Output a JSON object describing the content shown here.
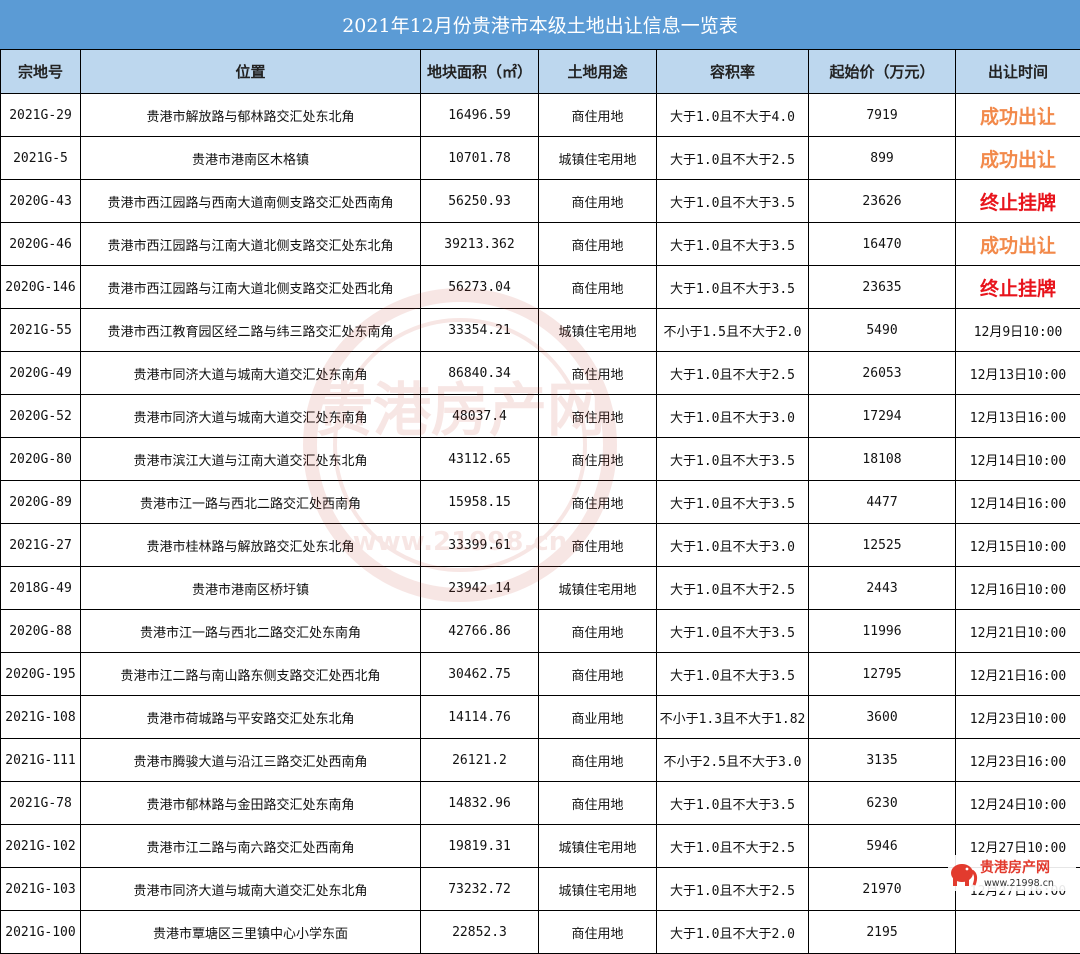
{
  "title": "2021年12月份贵港市本级土地出让信息一览表",
  "headers": [
    "宗地号",
    "位置",
    "地块面积（㎡）",
    "土地用途",
    "容积率",
    "起始价（万元）",
    "出让时间"
  ],
  "rows": [
    {
      "id": "2021G-29",
      "location": "贵港市解放路与郁林路交汇处东北角",
      "area": "16496.59",
      "use": "商住用地",
      "far": "大于1.0且不大于4.0",
      "price": "7919",
      "time": "",
      "status": "成功出让",
      "status_type": "success"
    },
    {
      "id": "2021G-5",
      "location": "贵港市港南区木格镇",
      "area": "10701.78",
      "use": "城镇住宅用地",
      "far": "大于1.0且不大于2.5",
      "price": "899",
      "time": "",
      "status": "成功出让",
      "status_type": "success"
    },
    {
      "id": "2020G-43",
      "location": "贵港市西江园路与西南大道南侧支路交汇处西南角",
      "area": "56250.93",
      "use": "商住用地",
      "far": "大于1.0且不大于3.5",
      "price": "23626",
      "time": "",
      "status": "终止挂牌",
      "status_type": "terminated"
    },
    {
      "id": "2020G-46",
      "location": "贵港市西江园路与江南大道北侧支路交汇处东北角",
      "area": "39213.362",
      "use": "商住用地",
      "far": "大于1.0且不大于3.5",
      "price": "16470",
      "time": "",
      "status": "成功出让",
      "status_type": "success"
    },
    {
      "id": "2020G-146",
      "location": "贵港市西江园路与江南大道北侧支路交汇处西北角",
      "area": "56273.04",
      "use": "商住用地",
      "far": "大于1.0且不大于3.5",
      "price": "23635",
      "time": "",
      "status": "终止挂牌",
      "status_type": "terminated"
    },
    {
      "id": "2021G-55",
      "location": "贵港市西江教育园区经二路与纬三路交汇处东南角",
      "area": "33354.21",
      "use": "城镇住宅用地",
      "far": "不小于1.5且不大于2.0",
      "price": "5490",
      "time": "12月9日10:00",
      "status": "",
      "status_type": ""
    },
    {
      "id": "2020G-49",
      "location": "贵港市同济大道与城南大道交汇处东南角",
      "area": "86840.34",
      "use": "商住用地",
      "far": "大于1.0且不大于2.5",
      "price": "26053",
      "time": "12月13日10:00",
      "status": "",
      "status_type": ""
    },
    {
      "id": "2020G-52",
      "location": "贵港市同济大道与城南大道交汇处东南角",
      "area": "48037.4",
      "use": "商住用地",
      "far": "大于1.0且不大于3.0",
      "price": "17294",
      "time": "12月13日16:00",
      "status": "",
      "status_type": ""
    },
    {
      "id": "2020G-80",
      "location": "贵港市滨江大道与江南大道交汇处东北角",
      "area": "43112.65",
      "use": "商住用地",
      "far": "大于1.0且不大于3.5",
      "price": "18108",
      "time": "12月14日10:00",
      "status": "",
      "status_type": ""
    },
    {
      "id": "2020G-89",
      "location": "贵港市江一路与西北二路交汇处西南角",
      "area": "15958.15",
      "use": "商住用地",
      "far": "大于1.0且不大于3.5",
      "price": "4477",
      "time": "12月14日16:00",
      "status": "",
      "status_type": ""
    },
    {
      "id": "2021G-27",
      "location": "贵港市桂林路与解放路交汇处东北角",
      "area": "33399.61",
      "use": "商住用地",
      "far": "大于1.0且不大于3.0",
      "price": "12525",
      "time": "12月15日10:00",
      "status": "",
      "status_type": ""
    },
    {
      "id": "2018G-49",
      "location": "贵港市港南区桥圩镇",
      "area": "23942.14",
      "use": "城镇住宅用地",
      "far": "大于1.0且不大于2.5",
      "price": "2443",
      "time": "12月16日10:00",
      "status": "",
      "status_type": ""
    },
    {
      "id": "2020G-88",
      "location": "贵港市江一路与西北二路交汇处东南角",
      "area": "42766.86",
      "use": "商住用地",
      "far": "大于1.0且不大于3.5",
      "price": "11996",
      "time": "12月21日10:00",
      "status": "",
      "status_type": ""
    },
    {
      "id": "2020G-195",
      "location": "贵港市江二路与南山路东侧支路交汇处西北角",
      "area": "30462.75",
      "use": "商住用地",
      "far": "大于1.0且不大于3.5",
      "price": "12795",
      "time": "12月21日16:00",
      "status": "",
      "status_type": ""
    },
    {
      "id": "2021G-108",
      "location": "贵港市荷城路与平安路交汇处东北角",
      "area": "14114.76",
      "use": "商业用地",
      "far": "不小于1.3且不大于1.82",
      "price": "3600",
      "time": "12月23日10:00",
      "status": "",
      "status_type": ""
    },
    {
      "id": "2021G-111",
      "location": "贵港市腾骏大道与沿江三路交汇处西南角",
      "area": "26121.2",
      "use": "商住用地",
      "far": "不小于2.5且不大于3.0",
      "price": "3135",
      "time": "12月23日16:00",
      "status": "",
      "status_type": ""
    },
    {
      "id": "2021G-78",
      "location": "贵港市郁林路与金田路交汇处东南角",
      "area": "14832.96",
      "use": "商住用地",
      "far": "大于1.0且不大于3.5",
      "price": "6230",
      "time": "12月24日10:00",
      "status": "",
      "status_type": ""
    },
    {
      "id": "2021G-102",
      "location": "贵港市江二路与南六路交汇处西南角",
      "area": "19819.31",
      "use": "城镇住宅用地",
      "far": "大于1.0且不大于2.5",
      "price": "5946",
      "time": "12月27日10:00",
      "status": "",
      "status_type": ""
    },
    {
      "id": "2021G-103",
      "location": "贵港市同济大道与城南大道交汇处东北角",
      "area": "73232.72",
      "use": "城镇住宅用地",
      "far": "大于1.0且不大于2.5",
      "price": "21970",
      "time": "12月27日16:00",
      "status": "",
      "status_type": ""
    },
    {
      "id": "2021G-100",
      "location": "贵港市覃塘区三里镇中心小学东面",
      "area": "22852.3",
      "use": "商住用地",
      "far": "大于1.0且不大于2.0",
      "price": "2195",
      "time": "",
      "status": "",
      "status_type": ""
    }
  ],
  "watermark": {
    "text": "贵港房产网",
    "url": "www.21998.cn"
  },
  "logo": {
    "name": "贵港房产网",
    "url": "www.21998.cn"
  },
  "colors": {
    "header_bg": "#5b9bd5",
    "column_header_bg": "#bdd7ee",
    "success": "#f2894a",
    "terminated": "#e8141c",
    "watermark": "#c0392b"
  }
}
